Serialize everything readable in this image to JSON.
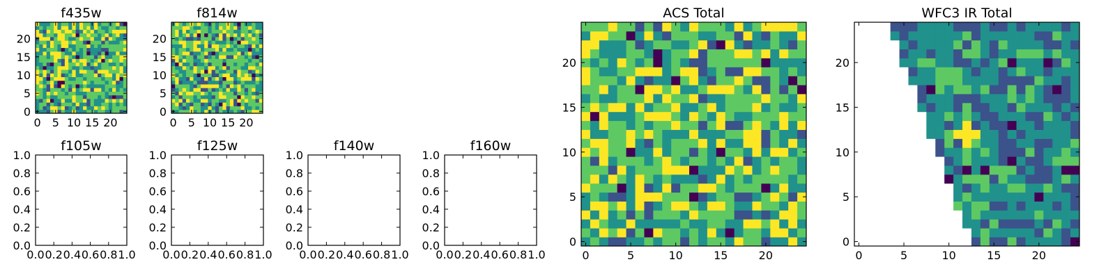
{
  "colormap": [
    "#440154",
    "#3b528b",
    "#21918c",
    "#5ec962",
    "#fde725"
  ],
  "chart_data": [
    {
      "id": "f435w",
      "type": "heatmap",
      "title": "f435w",
      "grid": [
        25,
        25
      ],
      "xlim": [
        -0.5,
        24.5
      ],
      "ylim": [
        -0.5,
        24.5
      ],
      "xticks": [
        0,
        5,
        10,
        15,
        20
      ],
      "yticks": [
        0,
        5,
        10,
        15,
        20
      ],
      "xtick_labels": [
        "0",
        "5",
        "10",
        "15",
        "20"
      ],
      "ytick_labels": [
        "0",
        "5",
        "10",
        "15",
        "20"
      ],
      "values": "random-noise",
      "seed": 11
    },
    {
      "id": "f814w",
      "type": "heatmap",
      "title": "f814w",
      "grid": [
        25,
        25
      ],
      "xlim": [
        -0.5,
        24.5
      ],
      "ylim": [
        -0.5,
        24.5
      ],
      "xticks": [
        0,
        5,
        10,
        15,
        20
      ],
      "yticks": [
        0,
        5,
        10,
        15,
        20
      ],
      "xtick_labels": [
        "0",
        "5",
        "10",
        "15",
        "20"
      ],
      "ytick_labels": [
        "0",
        "5",
        "10",
        "15",
        "20"
      ],
      "values": "random-noise",
      "seed": 23
    },
    {
      "id": "f105w",
      "type": "empty",
      "title": "f105w",
      "xlim": [
        0,
        1
      ],
      "ylim": [
        0,
        1
      ],
      "xticks": [
        0,
        0.2,
        0.4,
        0.6,
        0.8,
        1.0
      ],
      "yticks": [
        0,
        0.2,
        0.4,
        0.6,
        0.8,
        1.0
      ],
      "xtick_labels": [
        "0.0",
        "0.2",
        "0.4",
        "0.6",
        "0.8",
        "1.0"
      ],
      "ytick_labels": [
        "0.0",
        "0.2",
        "0.4",
        "0.6",
        "0.8",
        "1.0"
      ]
    },
    {
      "id": "f125w",
      "type": "empty",
      "title": "f125w",
      "xlim": [
        0,
        1
      ],
      "ylim": [
        0,
        1
      ],
      "xticks": [
        0,
        0.2,
        0.4,
        0.6,
        0.8,
        1.0
      ],
      "yticks": [
        0,
        0.2,
        0.4,
        0.6,
        0.8,
        1.0
      ],
      "xtick_labels": [
        "0.0",
        "0.2",
        "0.4",
        "0.6",
        "0.8",
        "1.0"
      ],
      "ytick_labels": [
        "0.0",
        "0.2",
        "0.4",
        "0.6",
        "0.8",
        "1.0"
      ]
    },
    {
      "id": "f140w",
      "type": "empty",
      "title": "f140w",
      "xlim": [
        0,
        1
      ],
      "ylim": [
        0,
        1
      ],
      "xticks": [
        0,
        0.2,
        0.4,
        0.6,
        0.8,
        1.0
      ],
      "yticks": [
        0,
        0.2,
        0.4,
        0.6,
        0.8,
        1.0
      ],
      "xtick_labels": [
        "0.0",
        "0.2",
        "0.4",
        "0.6",
        "0.8",
        "1.0"
      ],
      "ytick_labels": [
        "0.0",
        "0.2",
        "0.4",
        "0.6",
        "0.8",
        "1.0"
      ]
    },
    {
      "id": "f160w",
      "type": "empty",
      "title": "f160w",
      "xlim": [
        0,
        1
      ],
      "ylim": [
        0,
        1
      ],
      "xticks": [
        0,
        0.2,
        0.4,
        0.6,
        0.8,
        1.0
      ],
      "yticks": [
        0,
        0.2,
        0.4,
        0.6,
        0.8,
        1.0
      ],
      "xtick_labels": [
        "0.0",
        "0.2",
        "0.4",
        "0.6",
        "0.8",
        "1.0"
      ],
      "ytick_labels": [
        "0.0",
        "0.2",
        "0.4",
        "0.6",
        "0.8",
        "1.0"
      ]
    },
    {
      "id": "acs-total",
      "type": "heatmap",
      "title": "ACS Total",
      "grid": [
        25,
        25
      ],
      "xlim": [
        -0.5,
        24.5
      ],
      "ylim": [
        -0.5,
        24.5
      ],
      "xticks": [
        0,
        5,
        10,
        15,
        20
      ],
      "yticks": [
        0,
        5,
        10,
        15,
        20
      ],
      "xtick_labels": [
        "0",
        "5",
        "10",
        "15",
        "20"
      ],
      "ytick_labels": [
        "0",
        "5",
        "10",
        "15",
        "20"
      ],
      "values": "random-noise",
      "seed": 37
    },
    {
      "id": "wfc3-ir-total",
      "type": "heatmap",
      "title": "WFC3 IR Total",
      "grid": [
        25,
        25
      ],
      "xlim": [
        -0.5,
        24.5
      ],
      "ylim": [
        -0.5,
        24.5
      ],
      "xticks": [
        0,
        5,
        10,
        15,
        20
      ],
      "yticks": [
        0,
        5,
        10,
        15,
        20
      ],
      "xtick_labels": [
        "0",
        "5",
        "10",
        "15",
        "20"
      ],
      "ytick_labels": [
        "0",
        "5",
        "10",
        "15",
        "20"
      ],
      "values": "random-noise",
      "seed": 53,
      "masked_region": "upper-left triangle (NaN)",
      "bright_source": {
        "x": 12,
        "y": 12
      }
    }
  ]
}
